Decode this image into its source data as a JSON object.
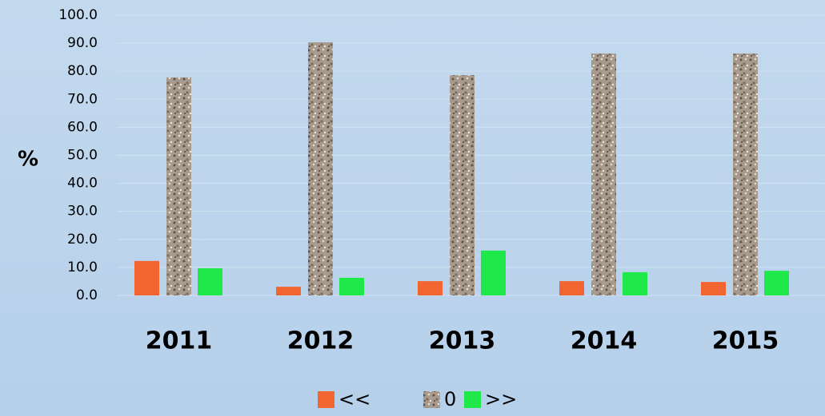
{
  "chart_data": {
    "type": "bar",
    "y_label": "%",
    "categories": [
      "2011",
      "2012",
      "2013",
      "2014",
      "2015"
    ],
    "series": [
      {
        "name": "<<",
        "color": "#f26430",
        "values": [
          12.3,
          3.1,
          5.1,
          5.1,
          4.8
        ]
      },
      {
        "name": "0",
        "color": "#a89a8c",
        "values": [
          77.8,
          90.3,
          78.6,
          86.3,
          86.3
        ]
      },
      {
        "name": ">>",
        "color": "#1ee84a",
        "values": [
          9.7,
          6.3,
          16.0,
          8.3,
          8.8
        ]
      }
    ],
    "ylim": [
      0,
      100
    ],
    "yticks": [
      {
        "value": 0,
        "label": "0.0"
      },
      {
        "value": 10,
        "label": "10.0"
      },
      {
        "value": 20,
        "label": "20.0"
      },
      {
        "value": 30,
        "label": "30.0"
      },
      {
        "value": 40,
        "label": "40.0"
      },
      {
        "value": 50,
        "label": "50.0"
      },
      {
        "value": 60,
        "label": "60.0"
      },
      {
        "value": 70,
        "label": "70.0"
      },
      {
        "value": 80,
        "label": "80.0"
      },
      {
        "value": 90,
        "label": "90.0"
      },
      {
        "value": 100,
        "label": "100.0"
      }
    ],
    "grid": true,
    "legend": "bottom"
  }
}
